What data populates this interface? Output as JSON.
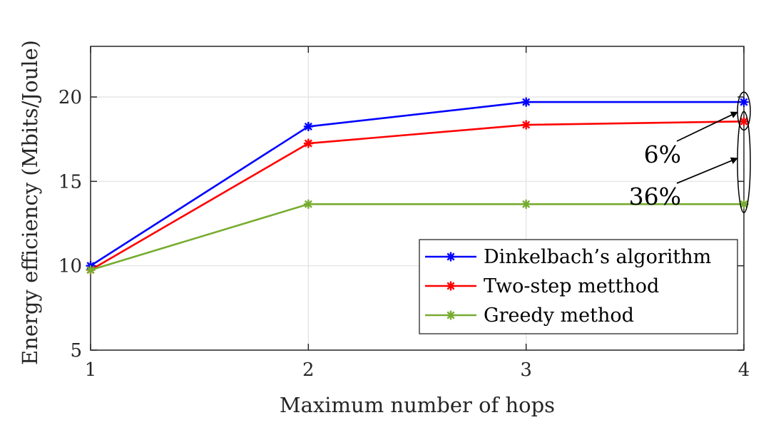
{
  "chart_data": {
    "type": "line",
    "title": "",
    "xlabel": "Maximum number of hops",
    "ylabel": "Energy efficiency (Mbits/Joule)",
    "x": [
      1,
      2,
      3,
      4
    ],
    "xlim": [
      1,
      4
    ],
    "ylim": [
      5,
      23
    ],
    "xticks": [
      "1",
      "2",
      "3",
      "4"
    ],
    "yticks": [
      "5",
      "10",
      "15",
      "20"
    ],
    "grid": true,
    "legend_position": "lower-right",
    "series": [
      {
        "name": "Dinkelbach’s algorithm",
        "values": [
          10.0,
          18.25,
          19.7,
          19.7
        ],
        "color": "#0000ff",
        "marker": "asterisk"
      },
      {
        "name": "Two-step metthod",
        "values": [
          9.75,
          17.25,
          18.35,
          18.55
        ],
        "color": "#ff0000",
        "marker": "asterisk"
      },
      {
        "name": "Greedy method",
        "values": [
          9.75,
          13.65,
          13.65,
          13.65
        ],
        "color": "#77ac30",
        "marker": "asterisk"
      }
    ],
    "annotations": [
      {
        "text": "6%",
        "x_value": 4,
        "y_range": [
          18.55,
          19.7
        ]
      },
      {
        "text": "36%",
        "x_value": 4,
        "y_range": [
          13.65,
          18.55
        ]
      }
    ]
  }
}
